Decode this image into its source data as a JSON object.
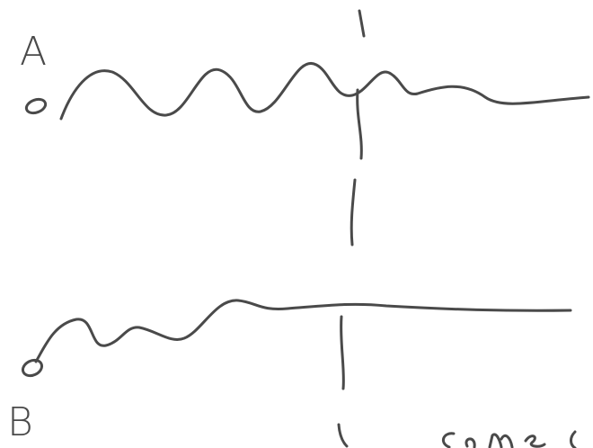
{
  "labels": {
    "a": "A",
    "b": "B"
  }
}
